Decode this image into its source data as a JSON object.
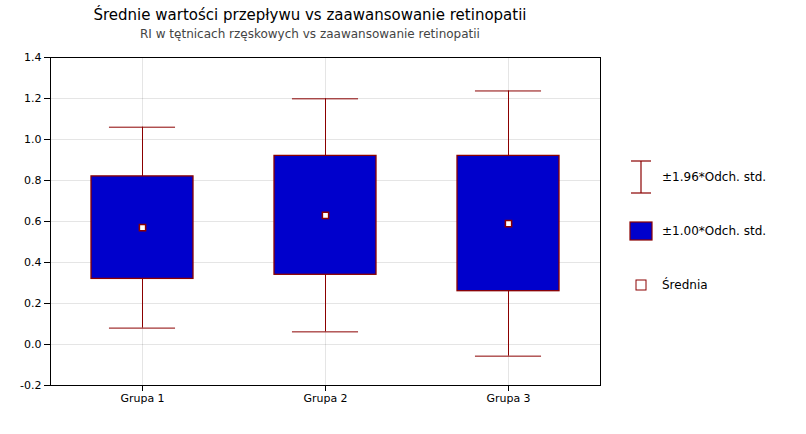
{
  "chart_data": {
    "type": "box",
    "title": "Średnie wartości przepływu vs zaawansowanie retinopatii",
    "subtitle": "RI w tętnicach rzęskowych vs zaawansowanie retinopatii",
    "categories": [
      "Grupa 1",
      "Grupa 2",
      "Grupa 3"
    ],
    "series": [
      {
        "name": "±1.96*Odch. std.",
        "type": "whisker",
        "color": "#8B0000",
        "low": [
          0.08,
          0.0616,
          -0.0568
        ],
        "high": [
          1.06,
          1.1984,
          1.2368
        ]
      },
      {
        "name": "±1.00*Odch. std.",
        "type": "box",
        "color": "#0000CC",
        "low": [
          0.32,
          0.34,
          0.26
        ],
        "high": [
          0.82,
          0.92,
          0.92
        ]
      },
      {
        "name": "Średnia",
        "type": "dot",
        "color": "#8B0000",
        "values": [
          0.57,
          0.63,
          0.59
        ]
      }
    ],
    "ylim": [
      -0.2,
      1.4
    ],
    "yticks": [
      -0.2,
      {
        "value": 0,
        "label": "0.0"
      },
      0.2,
      0.4,
      0.6,
      0.8,
      {
        "value": 1,
        "label": "1.0"
      },
      1.2,
      1.4
    ],
    "grid": true,
    "legend": "right"
  }
}
